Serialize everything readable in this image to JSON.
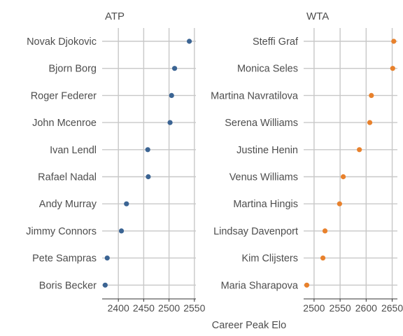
{
  "chart_data": {
    "type": "scatter",
    "xlabel": "Career Peak Elo",
    "colors": {
      "ATP": "#3b6493",
      "WTA": "#e8812c"
    },
    "grid": true,
    "panels": [
      {
        "title": "ATP",
        "color": "#3b6493",
        "xlim": [
          2368,
          2553
        ],
        "xticks": [
          2400,
          2450,
          2500,
          2550
        ],
        "categories": [
          "Novak Djokovic",
          "Bjorn Borg",
          "Roger Federer",
          "John Mcenroe",
          "Ivan Lendl",
          "Rafael Nadal",
          "Andy Murray",
          "Jimmy Connors",
          "Pete Sampras",
          "Boris Becker"
        ],
        "values": [
          2540,
          2511,
          2505,
          2502,
          2458,
          2459,
          2416,
          2406,
          2378,
          2374
        ]
      },
      {
        "title": "WTA",
        "color": "#e8812c",
        "xlim": [
          2480,
          2660
        ],
        "xticks": [
          2500,
          2550,
          2600,
          2650
        ],
        "categories": [
          "Steffi Graf",
          "Monica Seles",
          "Martina Navratilova",
          "Serena Williams",
          "Justine Henin",
          "Venus Williams",
          "Martina Hingis",
          "Lindsay Davenport",
          "Kim Clijsters",
          "Maria Sharapova"
        ],
        "values": [
          2653,
          2651,
          2610,
          2607,
          2587,
          2556,
          2549,
          2521,
          2517,
          2486
        ]
      }
    ]
  }
}
